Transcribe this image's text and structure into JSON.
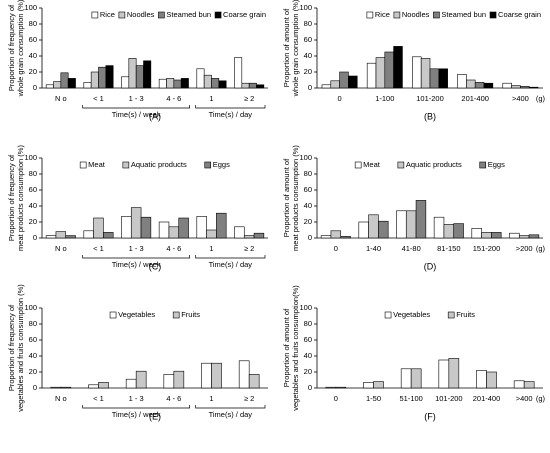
{
  "chart_data": [
    {
      "type": "bar",
      "label": "(A)",
      "ylabel": [
        "Proportion of frequency of",
        "whole grain consumption (%)"
      ],
      "categories": [
        "N o",
        "< 1",
        "1 - 3",
        "4 - 6",
        "1",
        "≥ 2"
      ],
      "category_groups": [
        {
          "label": "Time(s) / week",
          "span": [
            1,
            3
          ]
        },
        {
          "label": "Time(s) / day",
          "span": [
            4,
            5
          ]
        }
      ],
      "series": [
        {
          "name": "Rice",
          "color": "#ffffff",
          "values": [
            4,
            7,
            14,
            11,
            24,
            38
          ]
        },
        {
          "name": "Noodles",
          "color": "#c8c8c8",
          "values": [
            8,
            20,
            37,
            12,
            16,
            6
          ]
        },
        {
          "name": "Steamed bun",
          "color": "#808080",
          "values": [
            19,
            26,
            28,
            10,
            12,
            6
          ]
        },
        {
          "name": "Coarse grain",
          "color": "#000000",
          "values": [
            12,
            28,
            34,
            12,
            9,
            4
          ]
        }
      ],
      "ylim": [
        0,
        100
      ],
      "yticks": [
        0,
        20,
        40,
        60,
        80,
        100
      ],
      "legend": "top-right"
    },
    {
      "type": "bar",
      "label": "(B)",
      "ylabel": [
        "Proportion of amount of",
        "whole grain consumption (%)"
      ],
      "categories": [
        "0",
        "1-100",
        "101-200",
        "201-400",
        ">400"
      ],
      "x_unit": "(g)",
      "series": [
        {
          "name": "Rice",
          "color": "#ffffff",
          "values": [
            4,
            31,
            39,
            17,
            6
          ]
        },
        {
          "name": "Noodles",
          "color": "#c8c8c8",
          "values": [
            9,
            38,
            37,
            10,
            3
          ]
        },
        {
          "name": "Steamed bun",
          "color": "#808080",
          "values": [
            20,
            45,
            24,
            7,
            2
          ]
        },
        {
          "name": "Coarse grain",
          "color": "#000000",
          "values": [
            15,
            52,
            24,
            6,
            1
          ]
        }
      ],
      "ylim": [
        0,
        100
      ],
      "yticks": [
        0,
        20,
        40,
        60,
        80,
        100
      ],
      "legend": "top-right"
    },
    {
      "type": "bar",
      "label": "(C)",
      "ylabel": [
        "Proportion of frequency of",
        "meat products consumption (%)"
      ],
      "categories": [
        "N o",
        "< 1",
        "1 - 3",
        "4 - 6",
        "1",
        "≥ 2"
      ],
      "category_groups": [
        {
          "label": "Time(s) / week",
          "span": [
            1,
            3
          ]
        },
        {
          "label": "Time(s) / day",
          "span": [
            4,
            5
          ]
        }
      ],
      "series": [
        {
          "name": "Meat",
          "color": "#ffffff",
          "values": [
            3,
            9,
            27,
            20,
            27,
            14
          ]
        },
        {
          "name": "Aquatic products",
          "color": "#c8c8c8",
          "values": [
            8,
            25,
            38,
            14,
            10,
            3
          ]
        },
        {
          "name": "Eggs",
          "color": "#808080",
          "values": [
            3,
            7,
            26,
            25,
            31,
            6
          ]
        }
      ],
      "ylim": [
        0,
        100
      ],
      "yticks": [
        0,
        20,
        40,
        60,
        80,
        100
      ],
      "legend": "top"
    },
    {
      "type": "bar",
      "label": "(D)",
      "ylabel": [
        "Proportion of amount of",
        "meat products consumption (%)"
      ],
      "categories": [
        "0",
        "1-40",
        "41-80",
        "81-150",
        "151-200",
        ">200"
      ],
      "x_unit": "(g)",
      "series": [
        {
          "name": "Meat",
          "color": "#ffffff",
          "values": [
            3,
            20,
            34,
            26,
            12,
            6
          ]
        },
        {
          "name": "Aquatic products",
          "color": "#c8c8c8",
          "values": [
            9,
            29,
            34,
            17,
            7,
            3
          ]
        },
        {
          "name": "Eggs",
          "color": "#808080",
          "values": [
            2,
            21,
            47,
            18,
            7,
            4
          ]
        }
      ],
      "ylim": [
        0,
        100
      ],
      "yticks": [
        0,
        20,
        40,
        60,
        80,
        100
      ],
      "legend": "top"
    },
    {
      "type": "bar",
      "label": "(E)",
      "ylabel": [
        "Proportion of frequency of",
        "vegetables and fruits consumption (%)"
      ],
      "categories": [
        "N o",
        "< 1",
        "1 - 3",
        "4 - 6",
        "1",
        "≥ 2"
      ],
      "category_groups": [
        {
          "label": "Time(s) / week",
          "span": [
            1,
            3
          ]
        },
        {
          "label": "Time(s) / day",
          "span": [
            4,
            5
          ]
        }
      ],
      "series": [
        {
          "name": "Vegetables",
          "color": "#ffffff",
          "values": [
            1,
            4,
            11,
            17,
            31,
            34
          ]
        },
        {
          "name": "Fruits",
          "color": "#c8c8c8",
          "values": [
            1,
            7,
            21,
            21,
            31,
            17
          ]
        }
      ],
      "ylim": [
        0,
        100
      ],
      "yticks": [
        0,
        20,
        40,
        60,
        80,
        100
      ],
      "legend": "top"
    },
    {
      "type": "bar",
      "label": "(F)",
      "ylabel": [
        "Proportion of amount of",
        "vegetables and fruits consumption(%)"
      ],
      "categories": [
        "0",
        "1-50",
        "51-100",
        "101-200",
        "201-400",
        ">400"
      ],
      "x_unit": "(g)",
      "series": [
        {
          "name": "Vegetables",
          "color": "#ffffff",
          "values": [
            1,
            7,
            24,
            35,
            22,
            9
          ]
        },
        {
          "name": "Fruits",
          "color": "#c8c8c8",
          "values": [
            1,
            8,
            24,
            37,
            20,
            8
          ]
        }
      ],
      "ylim": [
        0,
        100
      ],
      "yticks": [
        0,
        20,
        40,
        60,
        80,
        100
      ],
      "legend": "top"
    }
  ]
}
